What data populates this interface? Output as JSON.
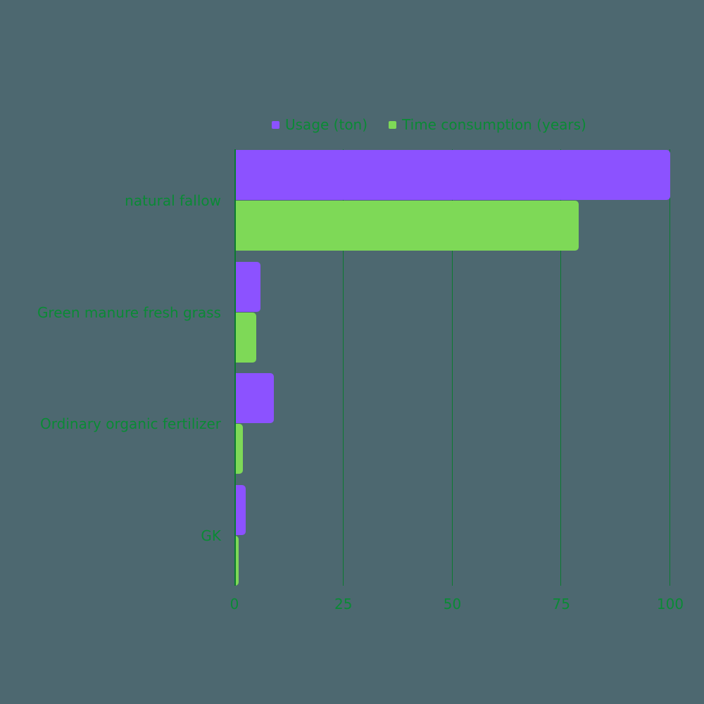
{
  "chart_data": {
    "type": "bar",
    "orientation": "horizontal",
    "title": "",
    "xlabel": "",
    "ylabel": "",
    "categories": [
      "natural fallow",
      "Green manure fresh grass",
      "Ordinary organic fertilizer",
      "GK"
    ],
    "series": [
      {
        "name": "Usage (ton)",
        "color": "#8c52ff",
        "values": [
          100,
          6,
          9,
          2.6
        ]
      },
      {
        "name": "Time consumption (years)",
        "color": "#7ed957",
        "values": [
          79,
          5,
          2,
          1
        ]
      }
    ],
    "xlim": [
      0,
      100
    ],
    "x_ticks": [
      0,
      25,
      50,
      75,
      100
    ],
    "grid": true,
    "legend_position": "top"
  },
  "legend": {
    "items": [
      {
        "label": "Usage (ton)",
        "color": "#8c52ff"
      },
      {
        "label": "Time consumption (years)",
        "color": "#7ed957"
      }
    ]
  },
  "axis": {
    "ticks": [
      "0",
      "25",
      "50",
      "75",
      "100"
    ]
  },
  "colors": {
    "background": "#4d6870",
    "text": "#0a8a35",
    "grid": "#0b7a30"
  }
}
